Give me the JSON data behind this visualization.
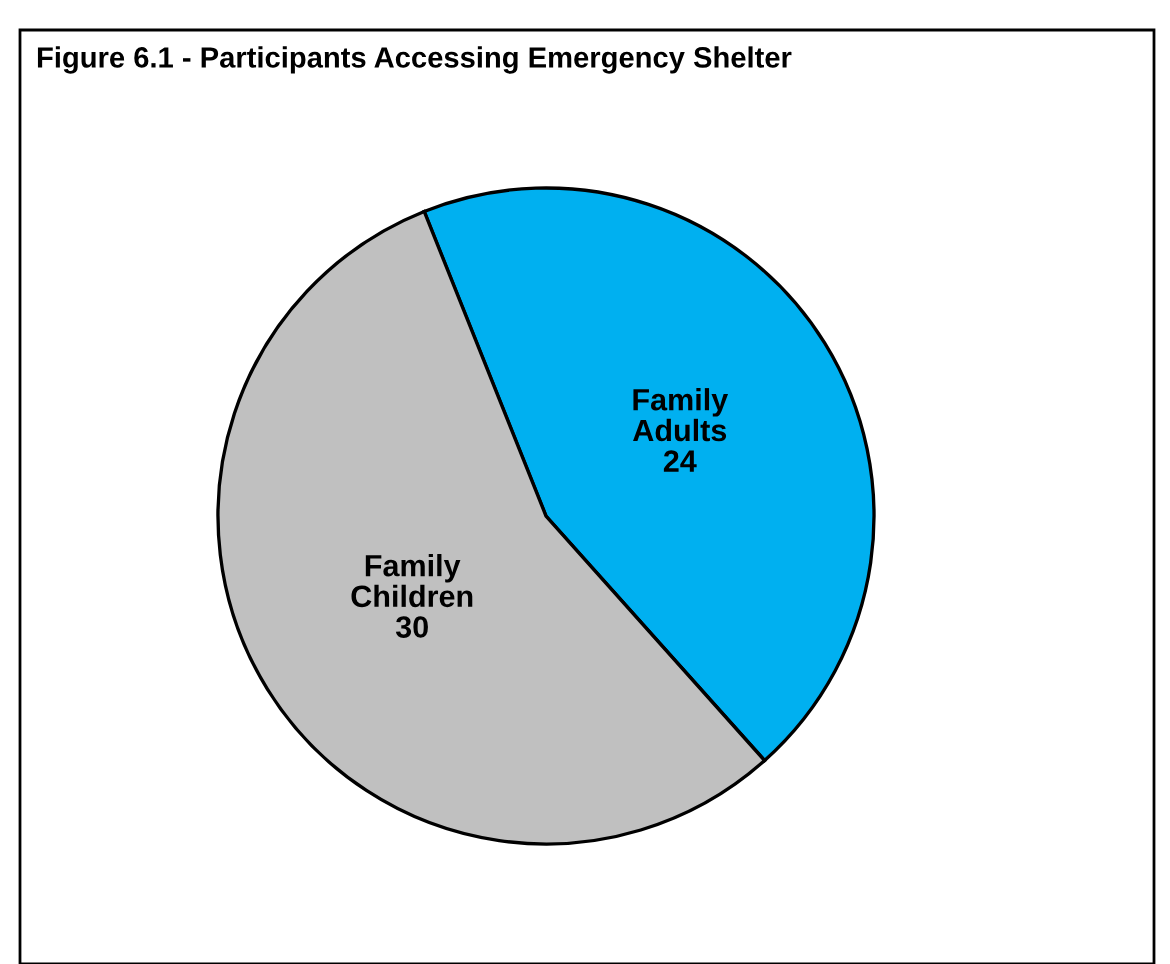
{
  "chart_data": {
    "type": "pie",
    "title": "Figure 6.1 - Participants Accessing Emergency Shelter",
    "categories": [
      "Family Adults",
      "Family Children"
    ],
    "values": [
      24,
      30
    ],
    "colors": [
      "#00b0f0",
      "#c0c0c0"
    ],
    "data_labels": true
  }
}
